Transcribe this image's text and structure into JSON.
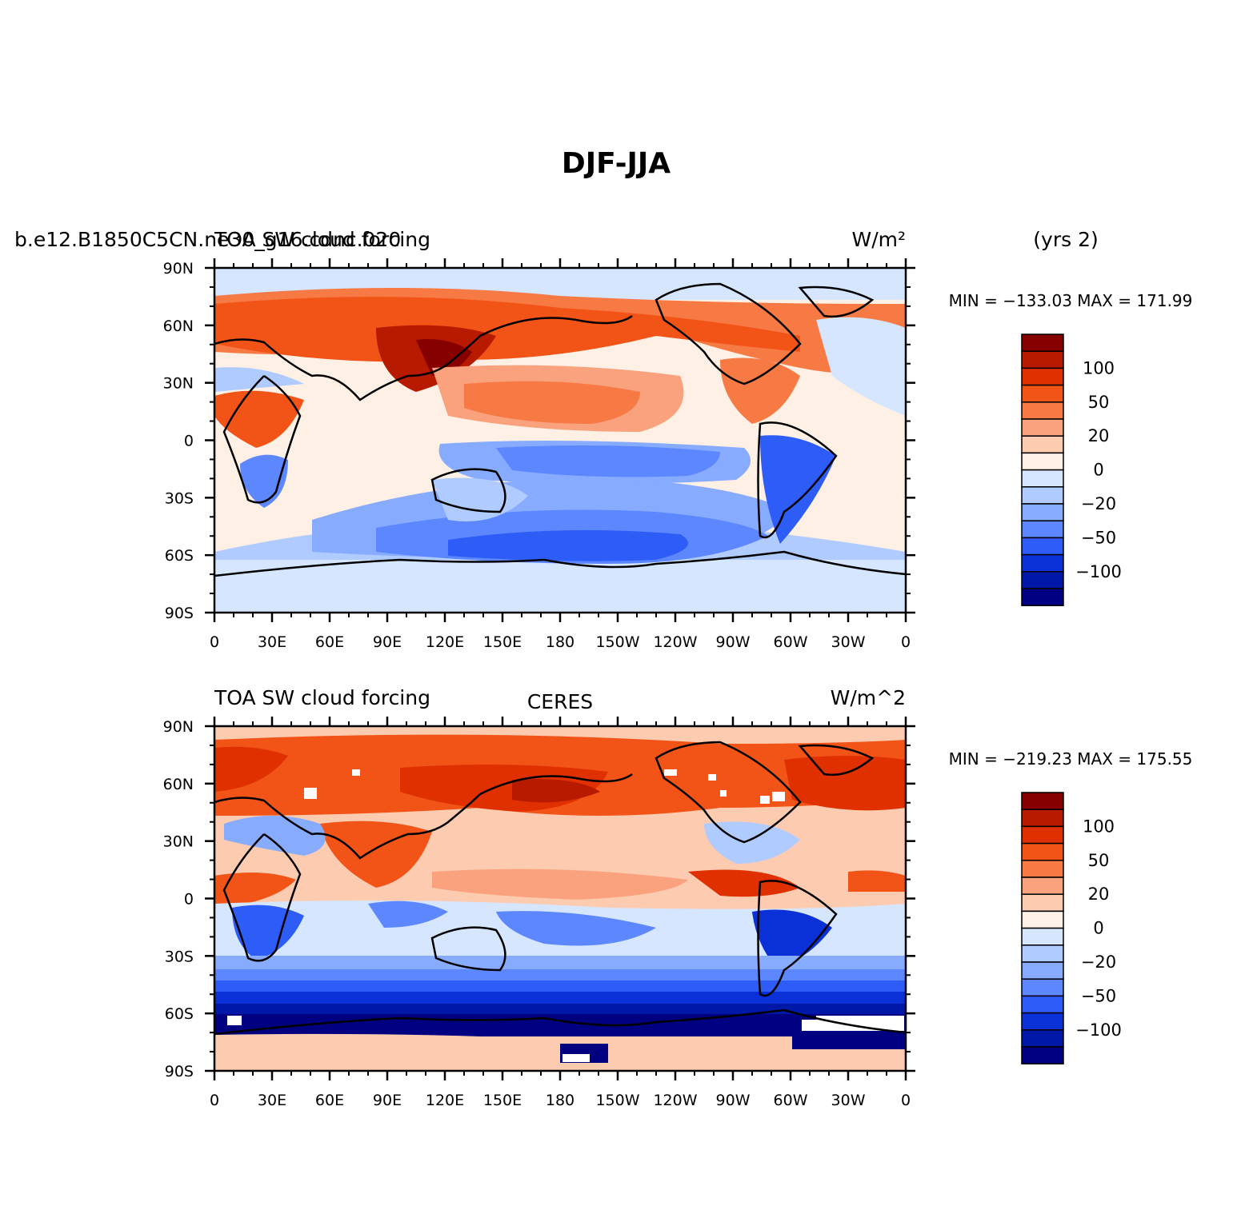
{
  "figure": {
    "title": "DJF-JJA"
  },
  "chart_data": [
    {
      "type": "heatmap",
      "title": "TOA SW cloud forcing",
      "left_label": "b.e12.B1850C5CN.ne30_g16.cdnc.020",
      "units": "W/m²",
      "extra_label": "(yrs 2)",
      "min_max": "MIN = −133.03 MAX = 171.99",
      "x_ticks": [
        "0",
        "30E",
        "60E",
        "90E",
        "120E",
        "150E",
        "180",
        "150W",
        "120W",
        "90W",
        "60W",
        "30W",
        "0"
      ],
      "y_ticks": [
        "90N",
        "60N",
        "30N",
        "0",
        "30S",
        "60S",
        "90S"
      ],
      "xlim": [
        0,
        360
      ],
      "ylim": [
        -90,
        90
      ],
      "colorbar_labels": [
        "100",
        "50",
        "20",
        "0",
        "−20",
        "−50",
        "−100"
      ]
    },
    {
      "type": "heatmap",
      "title": "TOA SW cloud forcing",
      "center_label": "CERES",
      "units": "W/m^2",
      "min_max": "MIN = −219.23 MAX = 175.55",
      "x_ticks": [
        "0",
        "30E",
        "60E",
        "90E",
        "120E",
        "150E",
        "180",
        "150W",
        "120W",
        "90W",
        "60W",
        "30W",
        "0"
      ],
      "y_ticks": [
        "90N",
        "60N",
        "30N",
        "0",
        "30S",
        "60S",
        "90S"
      ],
      "xlim": [
        0,
        360
      ],
      "ylim": [
        -90,
        90
      ],
      "colorbar_labels": [
        "100",
        "50",
        "20",
        "0",
        "−20",
        "−50",
        "−100"
      ]
    }
  ],
  "colorbar": {
    "colors_top_to_bottom": [
      "#870000",
      "#b81a00",
      "#e03000",
      "#f25418",
      "#f77a45",
      "#faa17d",
      "#fdcbb0",
      "#fff0e5",
      "#d6e6ff",
      "#b0cbff",
      "#87abff",
      "#5c87ff",
      "#2e5cf7",
      "#0a30d8",
      "#0018a8",
      "#000080"
    ]
  },
  "map_colors": {
    "land_outline": "#000000",
    "missing": "#ffffff"
  }
}
